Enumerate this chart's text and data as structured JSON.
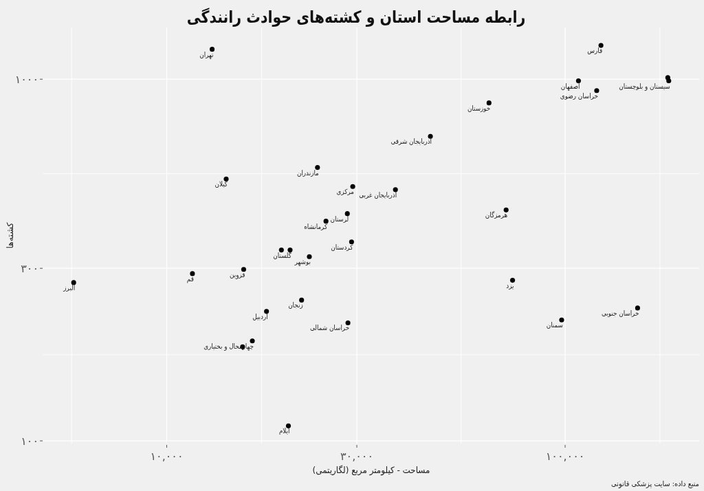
{
  "chart_data": {
    "type": "scatter",
    "title": "رابطه مساحت استان و کشته‌های حوادث رانندگی",
    "xlabel": "مساحت - کیلومتر مربع (لگاریتمی)",
    "ylabel": "کشته‌ها",
    "log": "xy",
    "grid": true,
    "marker": "circle",
    "color": "#000000",
    "x": [
      13000,
      14100,
      23900,
      29300,
      28400,
      25100,
      29100,
      123000,
      108000,
      182000,
      120000,
      64400,
      45900,
      37500,
      71100,
      20400,
      22800,
      15600,
      11600,
      5840,
      21800,
      17800,
      28500,
      16400,
      20200,
      73800,
      98000,
      152000,
      181000,
      19400,
      15500
    ],
    "values": [
      1210,
      530,
      570,
      505,
      425,
      405,
      355,
      1240,
      990,
      990,
      930,
      860,
      695,
      495,
      435,
      337,
      323,
      298,
      290,
      274,
      245,
      228,
      212,
      189,
      110,
      278,
      216,
      233,
      1010,
      337,
      182
    ],
    "xlim": [
      4900,
      217000
    ],
    "ylim": [
      98.3,
      1390
    ],
    "xticks": [
      {
        "value": 5770,
        "label": null
      },
      {
        "value": 10000,
        "label": "۱۰,۰۰۰"
      },
      {
        "value": 17300,
        "label": null
      },
      {
        "value": 30000,
        "label": "۳۰,۰۰۰"
      },
      {
        "value": 54800,
        "label": null
      },
      {
        "value": 100000,
        "label": "۱۰۰,۰۰۰"
      },
      {
        "value": 173000,
        "label": null
      }
    ],
    "yticks": [
      {
        "value": 100,
        "label": "۱۰۰"
      },
      {
        "value": 173,
        "label": null
      },
      {
        "value": 300,
        "label": "۳۰۰"
      },
      {
        "value": 548,
        "label": null
      },
      {
        "value": 1000,
        "label": "۱۰۰۰"
      }
    ],
    "annotations": [
      {
        "text": "تهران",
        "x": 13000,
        "y": 1210
      },
      {
        "text": "گیلان",
        "x": 14100,
        "y": 530
      },
      {
        "text": "مازندران",
        "x": 23900,
        "y": 570
      },
      {
        "text": "مرکزی",
        "x": 29300,
        "y": 505
      },
      {
        "text": "لرستان",
        "x": 28400,
        "y": 425
      },
      {
        "text": "کرمانشاه",
        "x": 25100,
        "y": 405
      },
      {
        "text": "کردستان",
        "x": 29100,
        "y": 355
      },
      {
        "text": "فارس",
        "x": 123000,
        "y": 1240
      },
      {
        "text": "اصفهان",
        "x": 108000,
        "y": 990
      },
      {
        "text": "سیستان و بلوچستان",
        "x": 182000,
        "y": 990
      },
      {
        "text": "خراسان رضوی",
        "x": 120000,
        "y": 930
      },
      {
        "text": "خوزستان",
        "x": 64400,
        "y": 860
      },
      {
        "text": "آذربایجان شرقی",
        "x": 45900,
        "y": 695
      },
      {
        "text": "آذربایجان غربی",
        "x": 37500,
        "y": 495
      },
      {
        "text": "هرمزگان",
        "x": 71100,
        "y": 435
      },
      {
        "text": "گلستان",
        "x": 20400,
        "y": 337
      },
      {
        "text": "بوشهر",
        "x": 22800,
        "y": 323
      },
      {
        "text": "قزوین",
        "x": 15600,
        "y": 298
      },
      {
        "text": "قم",
        "x": 11600,
        "y": 290
      },
      {
        "text": "البرز",
        "x": 5840,
        "y": 274
      },
      {
        "text": "زنجان",
        "x": 21800,
        "y": 245
      },
      {
        "text": "اردبیل",
        "x": 17800,
        "y": 228
      },
      {
        "text": "خراسان شمالی",
        "x": 28500,
        "y": 212
      },
      {
        "text": "چهارمحال و بختیاری",
        "x": 16400,
        "y": 189
      },
      {
        "text": "ایلام",
        "x": 20200,
        "y": 110
      },
      {
        "text": "یزد",
        "x": 73800,
        "y": 278
      },
      {
        "text": "سمنان",
        "x": 98000,
        "y": 216
      },
      {
        "text": "خراسان جنوبی",
        "x": 152000,
        "y": 233
      },
      "منبع داده: سایت پزشکی قانونی"
    ]
  }
}
